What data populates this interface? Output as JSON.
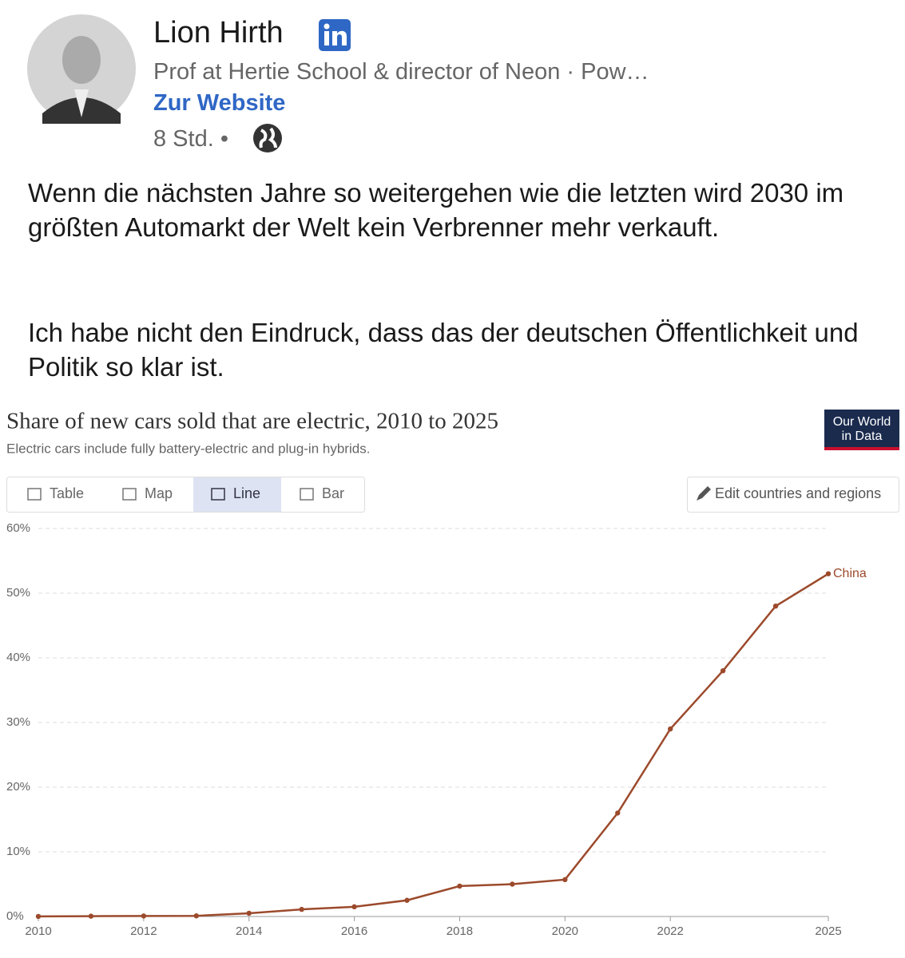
{
  "header": {
    "name": "Lion Hirth",
    "headline": "Prof at Hertie School & director of Neon · Pow…",
    "link": "Zur Website",
    "time": "8 Std. •"
  },
  "post": {
    "paragraphs": [
      "Wenn die nächsten Jahre so weitergehen wie die letzten wird 2030 im größten Automarkt der Welt kein Verbrenner mehr verkauft.",
      "Ich habe nicht den Eindruck, dass das der deutschen Öffentlichkeit und Politik so klar ist."
    ]
  },
  "chart_data": {
    "type": "line",
    "title": "Share of new cars sold that are electric, 2010 to 2025",
    "subtitle": "Electric cars include fully battery-electric and plug-in hybrids.",
    "logo": [
      "Our World",
      "in Data"
    ],
    "tabs": [
      "Table",
      "Map",
      "Line",
      "Bar"
    ],
    "edit_button": "Edit countries and regions",
    "x": [
      2010,
      2011,
      2012,
      2013,
      2014,
      2015,
      2016,
      2017,
      2018,
      2019,
      2020,
      2021,
      2022,
      2023,
      2024,
      2025
    ],
    "series": [
      {
        "name": "China",
        "color": "#9c4a2c",
        "values": [
          0.01,
          0.05,
          0.08,
          0.1,
          0.5,
          1.1,
          1.5,
          2.5,
          4.7,
          5.0,
          5.7,
          16,
          29,
          38,
          48,
          53
        ]
      }
    ],
    "xlim": [
      2010,
      2025
    ],
    "ylim": [
      0,
      60
    ],
    "xticks": [
      2010,
      2012,
      2014,
      2016,
      2018,
      2020,
      2022,
      2025
    ],
    "yticks": [
      {
        "value": 0,
        "label": "0%"
      },
      {
        "value": 10,
        "label": "10%"
      },
      {
        "value": 20,
        "label": "20%"
      },
      {
        "value": 30,
        "label": "30%"
      },
      {
        "value": 40,
        "label": "40%"
      },
      {
        "value": 50,
        "label": "50%"
      },
      {
        "value": 60,
        "label": "60%"
      }
    ],
    "grid": true
  }
}
